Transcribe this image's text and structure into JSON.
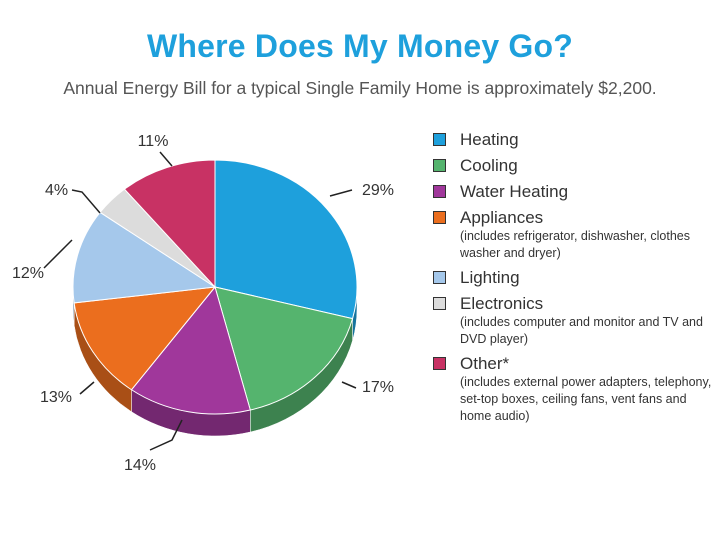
{
  "header": {
    "title": "Where Does My Money Go?",
    "subtitle": "Annual Energy Bill for a typical Single Family Home is approximately $2,200."
  },
  "legend": [
    {
      "label": "Heating",
      "note": "",
      "color": "#1ea0dc"
    },
    {
      "label": "Cooling",
      "note": "",
      "color": "#55b46e"
    },
    {
      "label": "Water Heating",
      "note": "",
      "color": "#a0379b"
    },
    {
      "label": "Appliances",
      "note": "(includes refrigerator, dishwasher, clothes washer and dryer)",
      "color": "#eb6e1e"
    },
    {
      "label": "Lighting",
      "note": "",
      "color": "#a5c8eb"
    },
    {
      "label": "Electronics",
      "note": "(includes computer and monitor and TV and DVD player)",
      "color": "#dcdcdc"
    },
    {
      "label": "Other*",
      "note": "(includes external power adapters, telephony, set-top boxes, ceiling fans, vent fans and home audio)",
      "color": "#c83264"
    }
  ],
  "chart_data": {
    "type": "pie",
    "title": "Where Does My Money Go?",
    "subtitle": "Annual Energy Bill for a typical Single Family Home is approximately $2,200.",
    "categories": [
      "Heating",
      "Cooling",
      "Water Heating",
      "Appliances",
      "Lighting",
      "Electronics",
      "Other*"
    ],
    "values": [
      29,
      17,
      14,
      13,
      12,
      4,
      11
    ],
    "labels": [
      "29%",
      "17%",
      "14%",
      "13%",
      "12%",
      "4%",
      "11%"
    ],
    "colors": [
      "#1ea0dc",
      "#55b46e",
      "#a0379b",
      "#eb6e1e",
      "#a5c8eb",
      "#dcdcdc",
      "#c83264"
    ],
    "legend_position": "right"
  }
}
